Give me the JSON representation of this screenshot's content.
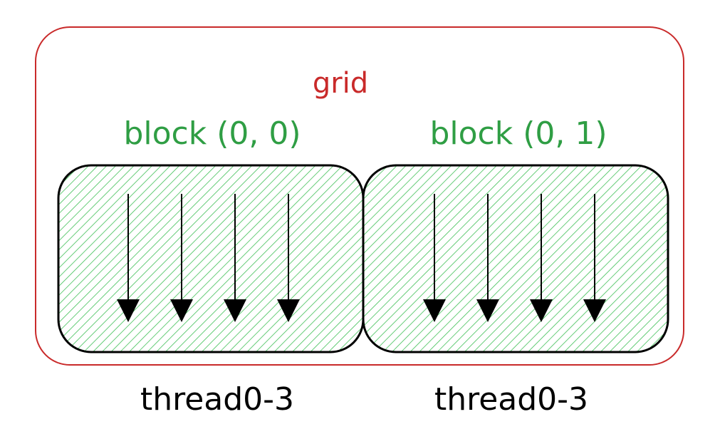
{
  "grid": {
    "label": "grid",
    "color": "#c92a2a"
  },
  "blocks": [
    {
      "label": "block (0, 0)",
      "threads_label": "thread0-3",
      "thread_count": 4
    },
    {
      "label": "block (0, 1)",
      "threads_label": "thread0-3",
      "thread_count": 4
    }
  ],
  "colors": {
    "block_label": "#2f9e44",
    "hatch": "#40c057",
    "stroke": "#000000"
  },
  "icons": {
    "thread": "down-arrow-icon"
  }
}
